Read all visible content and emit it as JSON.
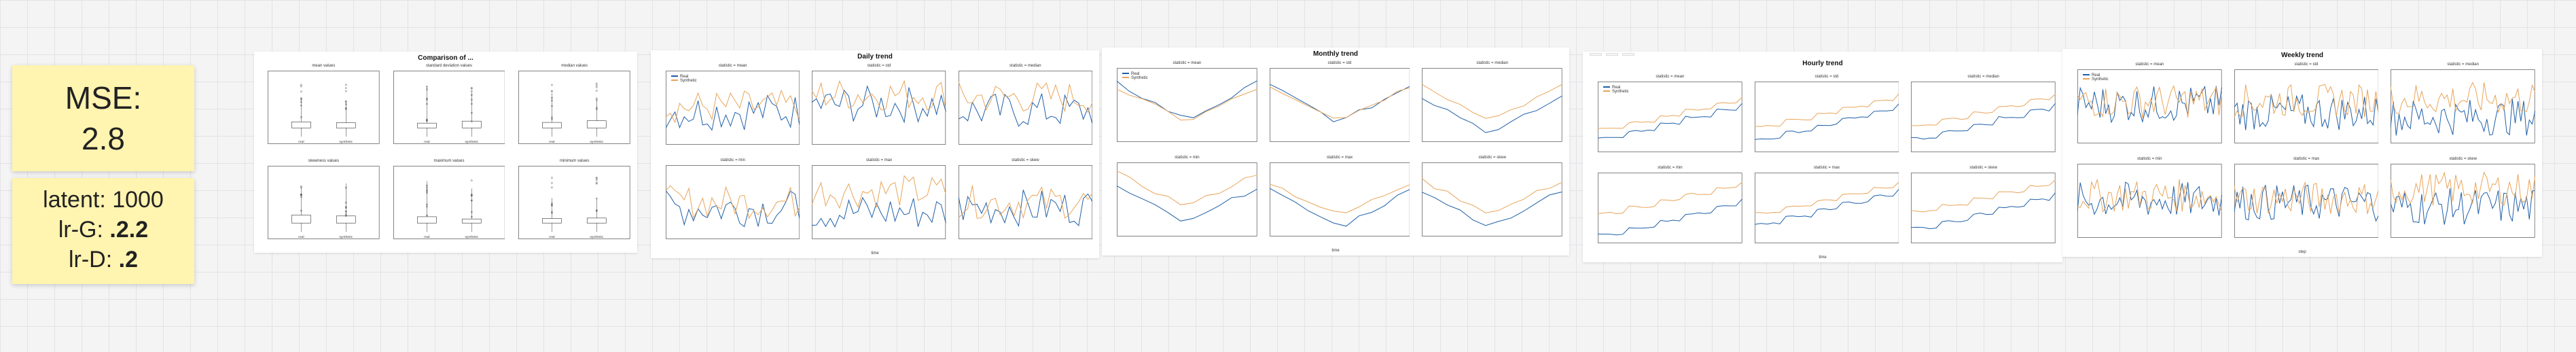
{
  "notes": {
    "mse_label": "MSE:",
    "mse_value": "2.8",
    "latent_label": "latent: 1000",
    "lrg_label": "lr-G:",
    "lrg_value": ".2.2",
    "lrd_label": "lr-D:",
    "lrd_value": ".2"
  },
  "colors": {
    "real": "#1f5fa8",
    "synthetic": "#e8a55a",
    "sticky": "#fff4b0"
  },
  "legend": {
    "real": "Real",
    "synthetic": "Synthetic"
  },
  "panels": {
    "box": {
      "title": "Comparison of ...",
      "subplots": [
        "mean values",
        "standard deviation values",
        "median values",
        "skewness values",
        "maximum values",
        "minimum values"
      ],
      "x_categories": [
        "real",
        "synthetic"
      ]
    },
    "daily": {
      "title": "Daily trend",
      "subplots": [
        "statistic = mean",
        "statistic = std",
        "statistic = median",
        "statistic = min",
        "statistic = max",
        "statistic = skew"
      ],
      "xlabel": "time"
    },
    "monthly": {
      "title": "Monthly trend",
      "subplots": [
        "statistic = mean",
        "statistic = std",
        "statistic = median",
        "statistic = min",
        "statistic = max",
        "statistic = skew"
      ],
      "xlabel": "time"
    },
    "hourly": {
      "title": "Hourly trend",
      "tabs": [
        "",
        "",
        ""
      ],
      "subplots": [
        "statistic = mean",
        "statistic = std",
        "statistic = median",
        "statistic = min",
        "statistic = max",
        "statistic = skew"
      ],
      "xlabel": "time"
    },
    "weekly": {
      "title": "Weekly trend",
      "subplots": [
        "statistic = mean",
        "statistic = std",
        "statistic = median",
        "statistic = min",
        "statistic = max",
        "statistic = skew"
      ],
      "xlabel": "step"
    }
  }
}
